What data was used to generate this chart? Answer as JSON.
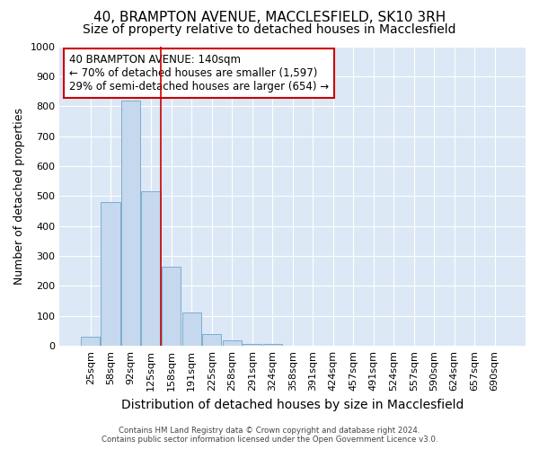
{
  "title": "40, BRAMPTON AVENUE, MACCLESFIELD, SK10 3RH",
  "subtitle": "Size of property relative to detached houses in Macclesfield",
  "xlabel": "Distribution of detached houses by size in Macclesfield",
  "ylabel": "Number of detached properties",
  "categories": [
    "25sqm",
    "58sqm",
    "92sqm",
    "125sqm",
    "158sqm",
    "191sqm",
    "225sqm",
    "258sqm",
    "291sqm",
    "324sqm",
    "358sqm",
    "391sqm",
    "424sqm",
    "457sqm",
    "491sqm",
    "524sqm",
    "557sqm",
    "590sqm",
    "624sqm",
    "657sqm",
    "690sqm"
  ],
  "values": [
    30,
    480,
    820,
    515,
    265,
    110,
    40,
    20,
    8,
    8,
    0,
    0,
    0,
    0,
    0,
    0,
    0,
    0,
    0,
    0,
    0
  ],
  "bar_color": "#c5d8ed",
  "bar_edge_color": "#7aaed0",
  "bar_linewidth": 0.7,
  "vline_x": 3.5,
  "vline_color": "#cc0000",
  "vline_linewidth": 1.2,
  "annotation_text": "40 BRAMPTON AVENUE: 140sqm\n← 70% of detached houses are smaller (1,597)\n29% of semi-detached houses are larger (654) →",
  "annotation_box_color": "#ffffff",
  "annotation_box_edge": "#cc0000",
  "ylim": [
    0,
    1000
  ],
  "yticks": [
    0,
    100,
    200,
    300,
    400,
    500,
    600,
    700,
    800,
    900,
    1000
  ],
  "fig_bg_color": "#ffffff",
  "plot_bg_color": "#dce8f5",
  "grid_color": "#ffffff",
  "title_fontsize": 11,
  "subtitle_fontsize": 10,
  "ylabel_fontsize": 9,
  "xlabel_fontsize": 10,
  "tick_fontsize": 8,
  "annot_fontsize": 8.5,
  "footer_line1": "Contains HM Land Registry data © Crown copyright and database right 2024.",
  "footer_line2": "Contains public sector information licensed under the Open Government Licence v3.0."
}
